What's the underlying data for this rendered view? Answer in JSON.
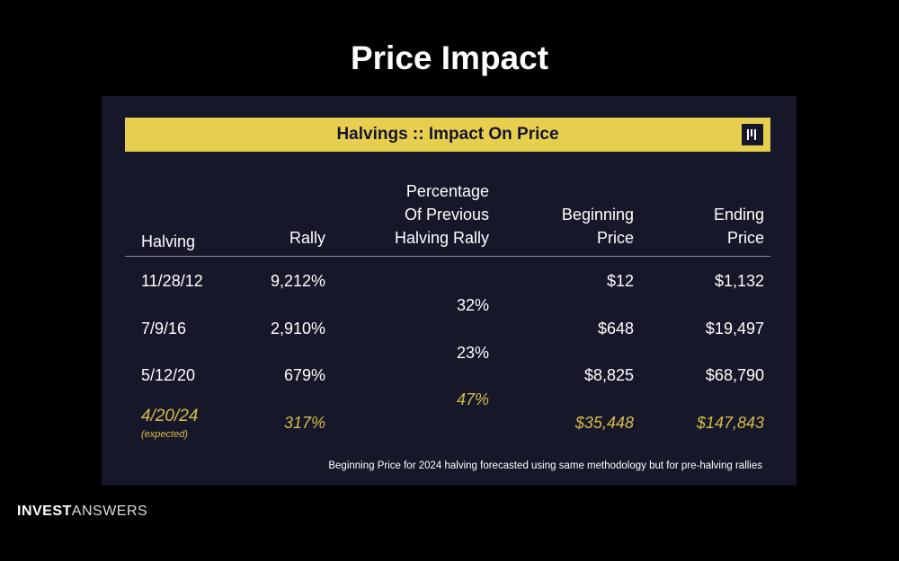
{
  "page": {
    "title": "Price Impact"
  },
  "card": {
    "banner_title": "Halvings :: Impact On Price",
    "logo_icon": "bars-logo-icon",
    "accent": "#e6cf4f",
    "projection_color": "#d4bd4a",
    "headers": {
      "halving": "Halving",
      "rally": "Rally",
      "pct_line1": "Percentage",
      "pct_line2": "Of Previous",
      "pct_line3": "Halving Rally",
      "begin_line1": "Beginning",
      "begin_line2": "Price",
      "end_line1": "Ending",
      "end_line2": "Price"
    },
    "rows": [
      {
        "halving": "11/28/12",
        "rally": "9,212%",
        "begin": "$12",
        "end": "$1,132"
      },
      {
        "halving": "7/9/16",
        "rally": "2,910%",
        "begin": "$648",
        "end": "$19,497"
      },
      {
        "halving": "5/12/20",
        "rally": "679%",
        "begin": "$8,825",
        "end": "$68,790"
      },
      {
        "halving": "4/20/24",
        "note": "(expected)",
        "rally": "317%",
        "begin": "$35,448",
        "end": "$147,843"
      }
    ],
    "pct_values": [
      "32%",
      "23%",
      "47%"
    ],
    "footnote": "Beginning Price for 2024 halving forecasted using same methodology but for pre-halving rallies"
  },
  "brand": {
    "bold": "INVEST",
    "light": "ANSWERS"
  }
}
